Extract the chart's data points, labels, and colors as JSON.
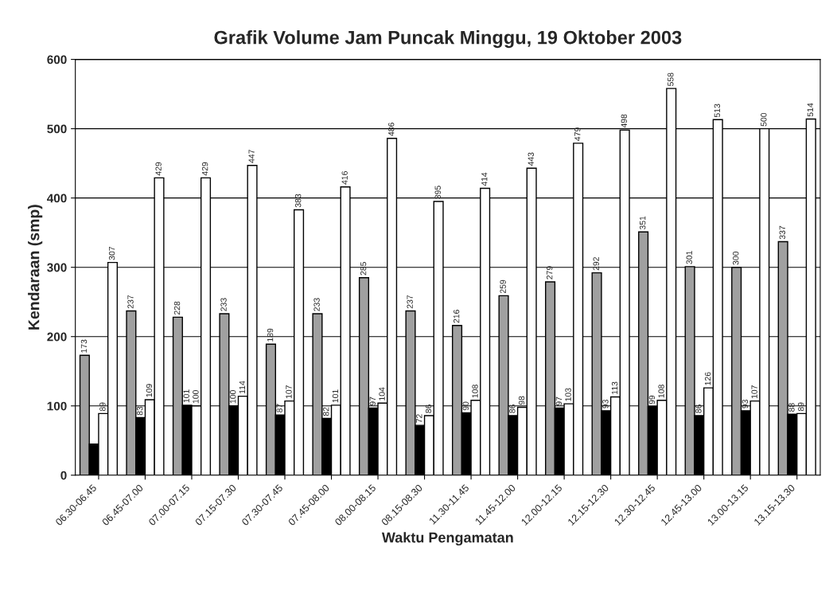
{
  "chart_data": {
    "type": "bar",
    "title": "Grafik Volume Jam Puncak Minggu, 19 Oktober 2003",
    "xlabel": "Waktu Pengamatan",
    "ylabel": "Kendaraan (smp)",
    "categories": [
      "06.30-06.45",
      "06.45-07.00",
      "07.00-07.15",
      "07.15-07.30",
      "07.30-07.45",
      "07.45-08.00",
      "08.00-08.15",
      "08.15-08.30",
      "11.30-11.45",
      "11.45-12.00",
      "12.00-12.15",
      "12.15-12.30",
      "12.30-12.45",
      "12.45-13.00",
      "13.00-13.15",
      "13.15-13.30"
    ],
    "series": [
      {
        "color": "#a0a0a0",
        "values": [
          173,
          237,
          228,
          233,
          189,
          233,
          285,
          237,
          216,
          259,
          279,
          292,
          351,
          301,
          300,
          337
        ],
        "value_labels": [
          "173",
          "237",
          "228",
          "233",
          "189",
          "233",
          "285",
          "237",
          "216",
          "259",
          "279",
          "292",
          "351",
          "301",
          "300",
          "337"
        ]
      },
      {
        "color": "#000000",
        "values": [
          45,
          83,
          101,
          100,
          87,
          82,
          97,
          72,
          90,
          86,
          97,
          93,
          99,
          86,
          93,
          88
        ],
        "value_labels": [
          null,
          "83",
          "101",
          "100",
          "87",
          "82",
          "97",
          "72",
          "90",
          "86",
          "97",
          "93",
          "99",
          "86",
          "93",
          "88"
        ]
      },
      {
        "color": "#ffffff",
        "values": [
          89,
          109,
          100,
          114,
          107,
          101,
          104,
          86,
          108,
          98,
          103,
          113,
          108,
          126,
          107,
          89
        ],
        "value_labels": [
          "89",
          "109",
          "100",
          "114",
          "107",
          "101",
          "104",
          "86",
          "108",
          "98",
          "103",
          "113",
          "108",
          "126",
          "107",
          "89"
        ]
      },
      {
        "color": "#ffffff",
        "values": [
          307,
          429,
          429,
          447,
          383,
          416,
          486,
          395,
          414,
          443,
          479,
          498,
          558,
          513,
          500,
          514
        ],
        "value_labels": [
          "307",
          "429",
          "429",
          "447",
          "383",
          "416",
          "486",
          "395",
          "414",
          "443",
          "479",
          "498",
          "558",
          "513",
          "500",
          "514"
        ]
      }
    ],
    "ylim": [
      0,
      600
    ],
    "yticks": [
      0,
      100,
      200,
      300,
      400,
      500,
      600
    ],
    "grid": "y"
  }
}
